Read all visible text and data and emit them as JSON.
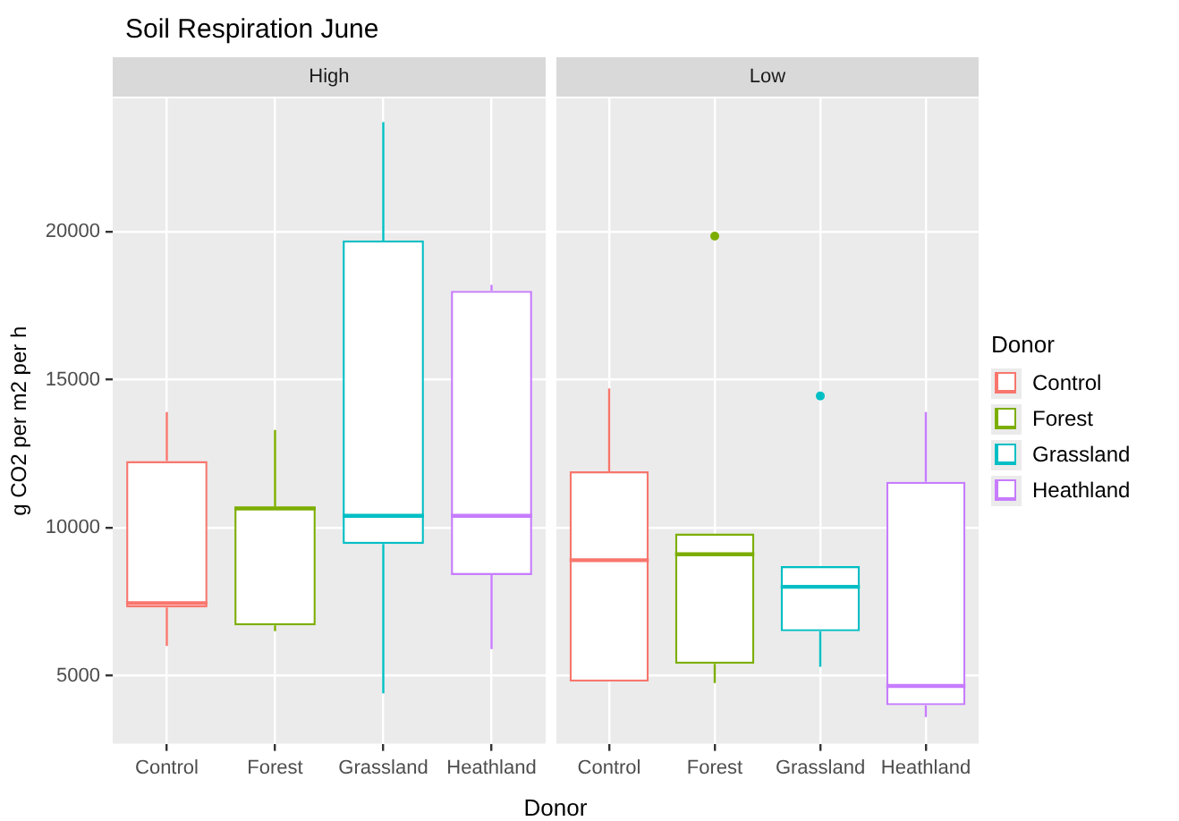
{
  "chart_data": [
    {
      "type": "box",
      "title": "Soil Respiration June",
      "subtitle": "High",
      "xlabel": "Donor",
      "ylabel": "g CO2 per m2 per h",
      "categories": [
        "Control",
        "Forest",
        "Grassland",
        "Heathland"
      ],
      "series": [
        {
          "color": "#f8766d",
          "boxes": [
            {
              "low": 6000,
              "q1": 7300,
              "median": 7450,
              "q3": 12250,
              "high": 13900
            },
            null,
            null,
            null
          ]
        },
        {
          "color": "#7cae00",
          "boxes": [
            null,
            {
              "low": 6500,
              "q1": 6700,
              "median": 10650,
              "q3": 10700,
              "high": 13300
            },
            null,
            null
          ]
        },
        {
          "color": "#00bfc4",
          "boxes": [
            null,
            null,
            {
              "low": 4400,
              "q1": 9450,
              "median": 10400,
              "q3": 19700,
              "high": 23700
            },
            null
          ]
        },
        {
          "color": "#c77cff",
          "boxes": [
            null,
            null,
            null,
            {
              "low": 5900,
              "q1": 8400,
              "median": 10400,
              "q3": 18000,
              "high": 18200
            }
          ]
        }
      ],
      "ylim": [
        2700,
        24500
      ],
      "yticks": [
        5000,
        10000,
        15000,
        20000
      ],
      "grid": true,
      "legend": false
    },
    {
      "type": "box",
      "subtitle": "Low",
      "legend_title": "Donor",
      "categories": [
        "Control",
        "Forest",
        "Grassland",
        "Heathland"
      ],
      "series": [
        {
          "name": "Control",
          "color": "#f8766d",
          "boxes": [
            {
              "low": 4800,
              "q1": 4800,
              "median": 8900,
              "q3": 11900,
              "high": 14700
            },
            null,
            null,
            null
          ]
        },
        {
          "name": "Forest",
          "color": "#7cae00",
          "boxes": [
            null,
            {
              "low": 4750,
              "q1": 5400,
              "median": 9100,
              "q3": 9800,
              "high": 9800,
              "outliers": [
                19850
              ]
            },
            null,
            null
          ]
        },
        {
          "name": "Grassland",
          "color": "#00bfc4",
          "boxes": [
            null,
            null,
            {
              "low": 5300,
              "q1": 6500,
              "median": 8000,
              "q3": 8700,
              "high": 8700,
              "outliers": [
                14450
              ]
            },
            null
          ]
        },
        {
          "name": "Heathland",
          "color": "#c77cff",
          "boxes": [
            null,
            null,
            null,
            {
              "low": 3600,
              "q1": 4000,
              "median": 4650,
              "q3": 11550,
              "high": 13900
            }
          ]
        }
      ],
      "ylim": [
        2700,
        24500
      ],
      "yticks": [
        5000,
        10000,
        15000,
        20000
      ],
      "grid": true,
      "legend": "right",
      "tick_labels": "x"
    }
  ]
}
